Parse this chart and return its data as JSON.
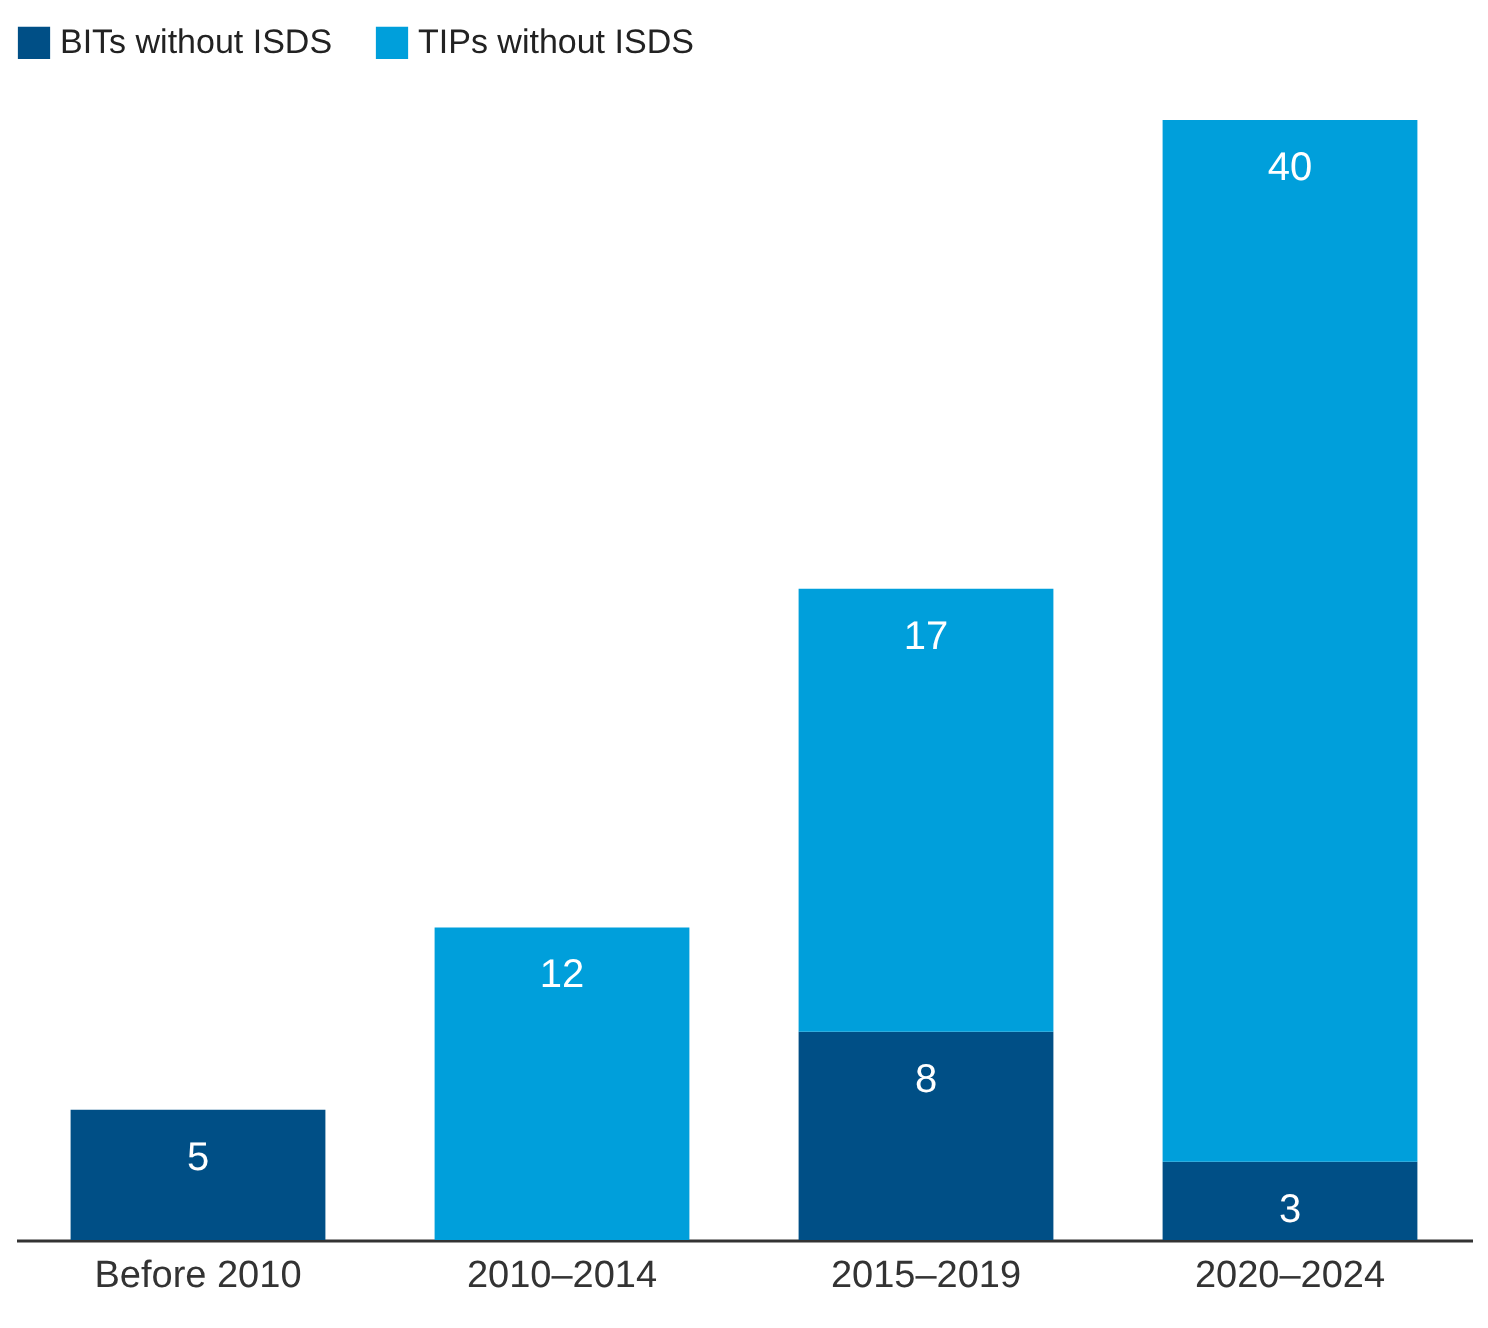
{
  "chart_data": {
    "type": "bar",
    "stacked": true,
    "categories": [
      "Before 2010",
      "2010–2014",
      "2015–2019",
      "2020–2024"
    ],
    "series": [
      {
        "name": "BITs without ISDS",
        "color": "#004f86",
        "values": [
          5,
          null,
          8,
          3
        ]
      },
      {
        "name": "TIPs without ISDS",
        "color": "#009fdb",
        "values": [
          null,
          12,
          17,
          40
        ]
      }
    ],
    "data_labels": true,
    "legend": "top left",
    "grid": false,
    "tick_labels": "x"
  }
}
